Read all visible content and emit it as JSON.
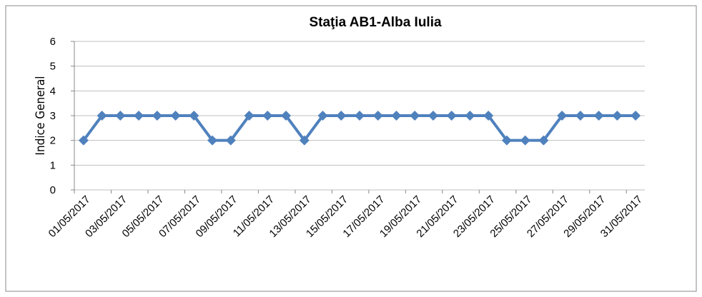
{
  "chart_data": {
    "type": "line",
    "title": "Staţia AB1-Alba Iulia",
    "y_label": "Indice General",
    "categories": [
      "01/05/2017",
      null,
      "03/05/2017",
      null,
      "05/05/2017",
      null,
      "07/05/2017",
      null,
      "09/05/2017",
      null,
      "11/05/2017",
      null,
      "13/05/2017",
      null,
      "15/05/2017",
      null,
      "17/05/2017",
      null,
      "19/05/2017",
      null,
      "21/05/2017",
      null,
      "23/05/2017",
      null,
      "25/05/2017",
      null,
      "27/05/2017",
      null,
      "29/05/2017",
      null,
      "31/05/2017"
    ],
    "values": [
      2,
      3,
      3,
      3,
      3,
      3,
      3,
      2,
      2,
      3,
      3,
      3,
      2,
      3,
      3,
      3,
      3,
      3,
      3,
      3,
      3,
      3,
      3,
      2,
      2,
      2,
      3,
      3,
      3,
      3,
      3
    ],
    "color": "#4f81bd",
    "ylim": [
      0,
      6
    ],
    "yticks": [
      0,
      1,
      2,
      3,
      4,
      5,
      6
    ],
    "grid": true
  }
}
